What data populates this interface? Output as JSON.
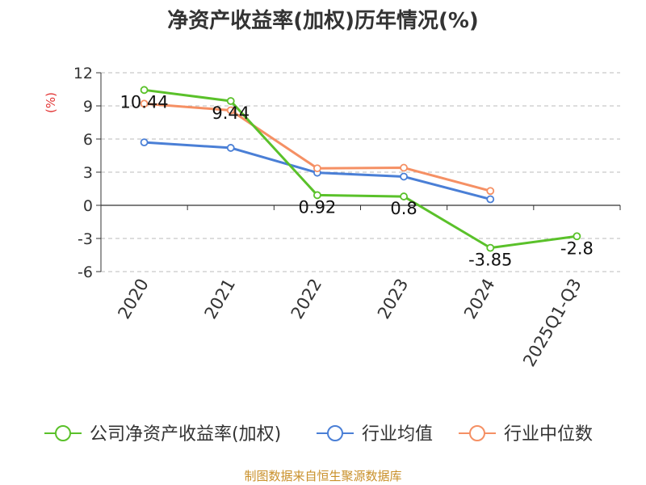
{
  "chart_data": {
    "type": "line",
    "title": "净资产收益率(加权)历年情况(%)",
    "ylabel": "(%)",
    "xlabel": "",
    "categories": [
      "2020",
      "2021",
      "2022",
      "2023",
      "2024",
      "2025Q1-Q3"
    ],
    "y_ticks": [
      "12",
      "9",
      "6",
      "3",
      "0",
      "-3",
      "-6"
    ],
    "y_tick_values": [
      12,
      9,
      6,
      3,
      0,
      -3,
      -6
    ],
    "ylim": [
      -6,
      12
    ],
    "grid": true,
    "legend_position": "bottom",
    "series": [
      {
        "name": "公司净资产收益率(加权)",
        "color": "#5ac12a",
        "values": [
          10.44,
          9.44,
          0.92,
          0.8,
          -3.85,
          -2.8
        ],
        "labels": [
          "10.44",
          "9.44",
          "0.92",
          "0.8",
          "-3.85",
          "-2.8"
        ]
      },
      {
        "name": "行业均值",
        "color": "#4a7fd6",
        "values": [
          5.7,
          5.2,
          2.95,
          2.6,
          0.55,
          null
        ]
      },
      {
        "name": "行业中位数",
        "color": "#f59064",
        "values": [
          9.2,
          8.6,
          3.35,
          3.4,
          1.3,
          null
        ]
      }
    ],
    "source": "制图数据来自恒生聚源数据库"
  },
  "colors": {
    "title": "#333333",
    "axis": "#333333",
    "grid": "#bbbbbb",
    "ylabel": "#e23434",
    "source": "#c9902a"
  }
}
